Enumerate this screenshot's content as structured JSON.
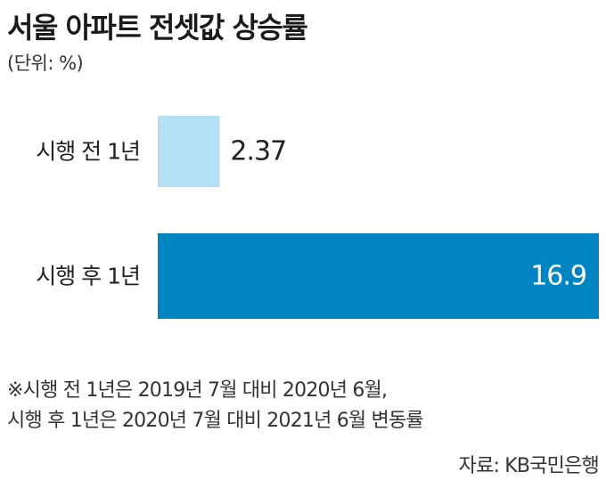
{
  "chart_data": {
    "type": "bar",
    "orientation": "horizontal",
    "title": "서울 아파트 전셋값 상승률",
    "unit": "(단위: %)",
    "categories": [
      "시행 전 1년",
      "시행 후 1년"
    ],
    "values": [
      2.37,
      16.9
    ],
    "value_labels": [
      "2.37",
      "16.9"
    ],
    "colors": [
      "#b3e0f3",
      "#0085c3"
    ],
    "xlim": [
      0,
      16.9
    ]
  },
  "notes": [
    "※시행 전 1년은 2019년 7월 대비 2020년 6월,",
    "시행 후 1년은 2020년 7월 대비 2021년 6월 변동률"
  ],
  "source": "자료: KB국민은행"
}
